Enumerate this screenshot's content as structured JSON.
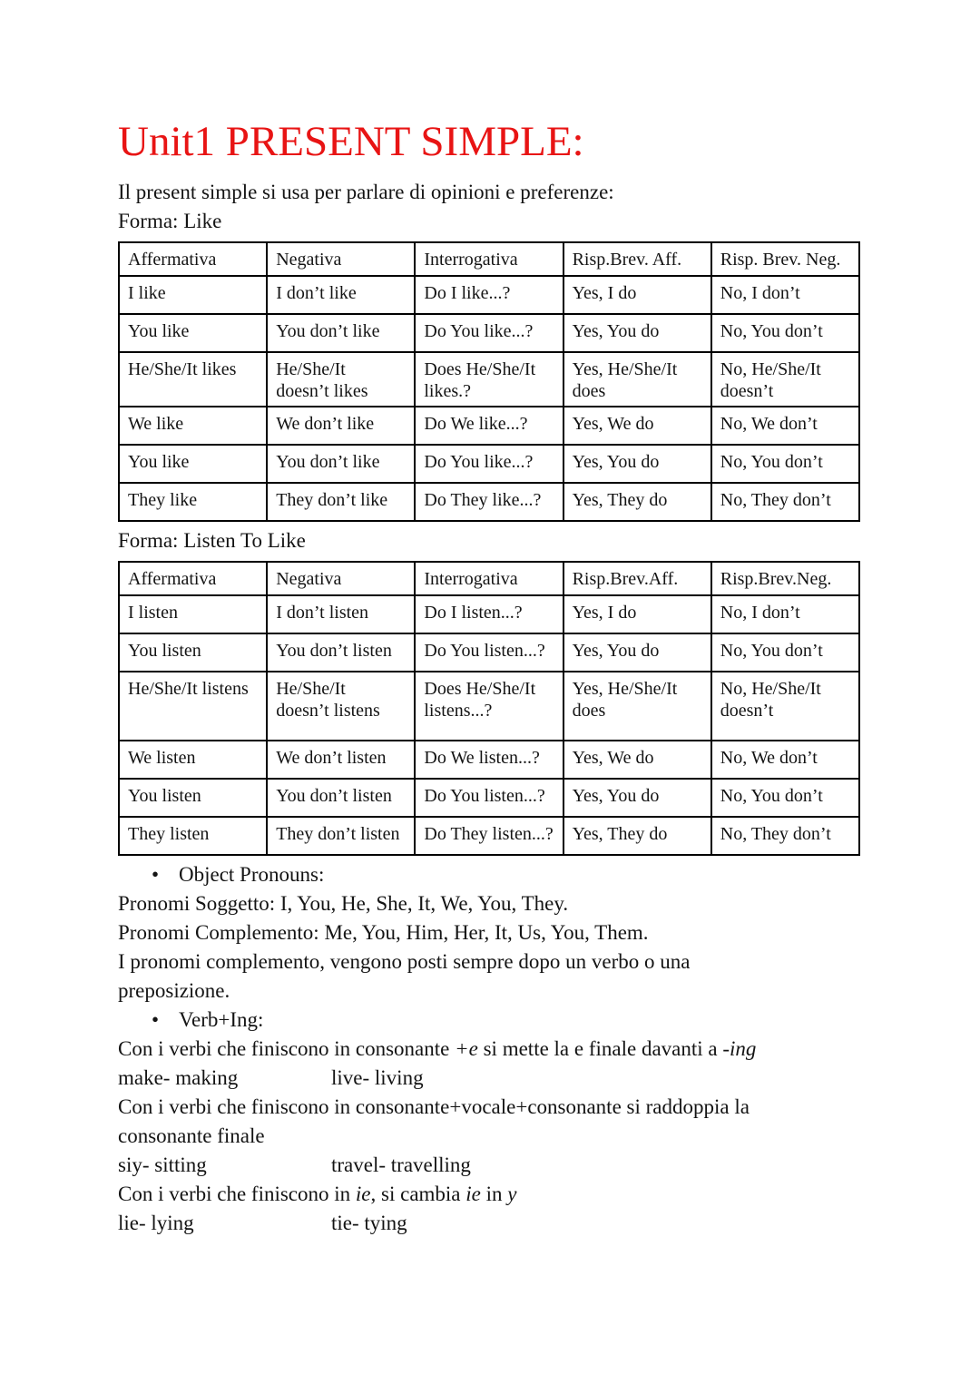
{
  "title": "Unit1 PRESENT SIMPLE:",
  "title_color": "#e81414",
  "intro": "Il present simple si usa per parlare di opinioni e preferenze:",
  "bullet_glyph": "•",
  "sections": [
    {
      "heading": "Forma: Like",
      "table": {
        "headers": [
          "Affermativa",
          "Negativa",
          "Interrogativa",
          "Risp.Brev. Aff.",
          "Risp. Brev. Neg."
        ],
        "rows": [
          [
            "I like",
            "I don’t like",
            "Do I like...?",
            "Yes, I do",
            "No, I don’t"
          ],
          [
            "You like",
            "You don’t like",
            "Do You like...?",
            "Yes, You do",
            "No, You don’t"
          ],
          [
            "He/She/It likes",
            "He/She/It\ndoesn’t likes",
            "Does He/She/It\nlikes.?",
            "Yes, He/She/It\ndoes",
            "No, He/She/It\ndoesn’t"
          ],
          [
            "We like",
            "We don’t like",
            "Do We like...?",
            "Yes, We do",
            "No, We don’t"
          ],
          [
            "You like",
            "You don’t like",
            "Do You like...?",
            "Yes, You do",
            "No, You don’t"
          ],
          [
            "They like",
            "They don’t like",
            "Do They like...?",
            "Yes, They do",
            "No, They don’t"
          ]
        ]
      }
    },
    {
      "heading": "Forma: Listen To Like",
      "table": {
        "headers": [
          "Affermativa",
          "Negativa",
          "Interrogativa",
          "Risp.Brev.Aff.",
          "Risp.Brev.Neg."
        ],
        "rows": [
          [
            "I listen",
            "I don’t listen",
            "Do I listen...?",
            "Yes, I do",
            "No, I don’t"
          ],
          [
            "You listen",
            "You don’t listen",
            "Do You listen...?",
            "Yes, You do",
            "No, You don’t"
          ],
          [
            "He/She/It listens",
            "He/She/It\ndoesn’t listens",
            "Does He/She/It\nlistens...?",
            "Yes, He/She/It\ndoes",
            "No, He/She/It\ndoesn’t"
          ],
          [
            "We listen",
            "We don’t listen",
            "Do We listen...?",
            "Yes, We do",
            "No, We don’t"
          ],
          [
            "You listen",
            "You don’t listen",
            "Do You listen...?",
            "Yes, You do",
            "No, You don’t"
          ],
          [
            "They listen",
            "They don’t listen",
            "Do They listen...?",
            "Yes, They do",
            "No, They don’t"
          ]
        ]
      }
    }
  ],
  "notes": {
    "object_pronouns_bullet": "Object Pronouns:",
    "pronomi_soggetto": "Pronomi Soggetto: I, You, He, She, It, We, You, They.",
    "pronomi_complemento": "Pronomi Complemento: Me, You, Him, Her, It, Us, You, Them.",
    "complemento_rule_line1": "I pronomi complemento, vengono posti sempre dopo un verbo o una",
    "complemento_rule_line2": "preposizione.",
    "verbing_bullet": "Verb+Ing:",
    "rule_e": [
      {
        "t": "Con i verbi che finiscono in consonante "
      },
      {
        "t": "+e",
        "i": true
      },
      {
        "t": " si mette la e finale davanti a "
      },
      {
        "t": "-ing",
        "i": true
      }
    ],
    "pair_make": {
      "left": "make- making",
      "right": "live- living"
    },
    "rule_cvc_line1": "Con i verbi che finiscono in consonante+vocale+consonante si raddoppia la",
    "rule_cvc_line2": "consonante finale",
    "pair_sit": {
      "left": "siy- sitting",
      "right": "travel- travelling"
    },
    "rule_ie": [
      {
        "t": "Con i verbi che finiscono in "
      },
      {
        "t": "ie",
        "i": true
      },
      {
        "t": ", si cambia "
      },
      {
        "t": "ie",
        "i": true
      },
      {
        "t": " in "
      },
      {
        "t": "y",
        "i": true
      }
    ],
    "pair_lie": {
      "left": "lie- lying",
      "right": "tie- tying"
    }
  }
}
